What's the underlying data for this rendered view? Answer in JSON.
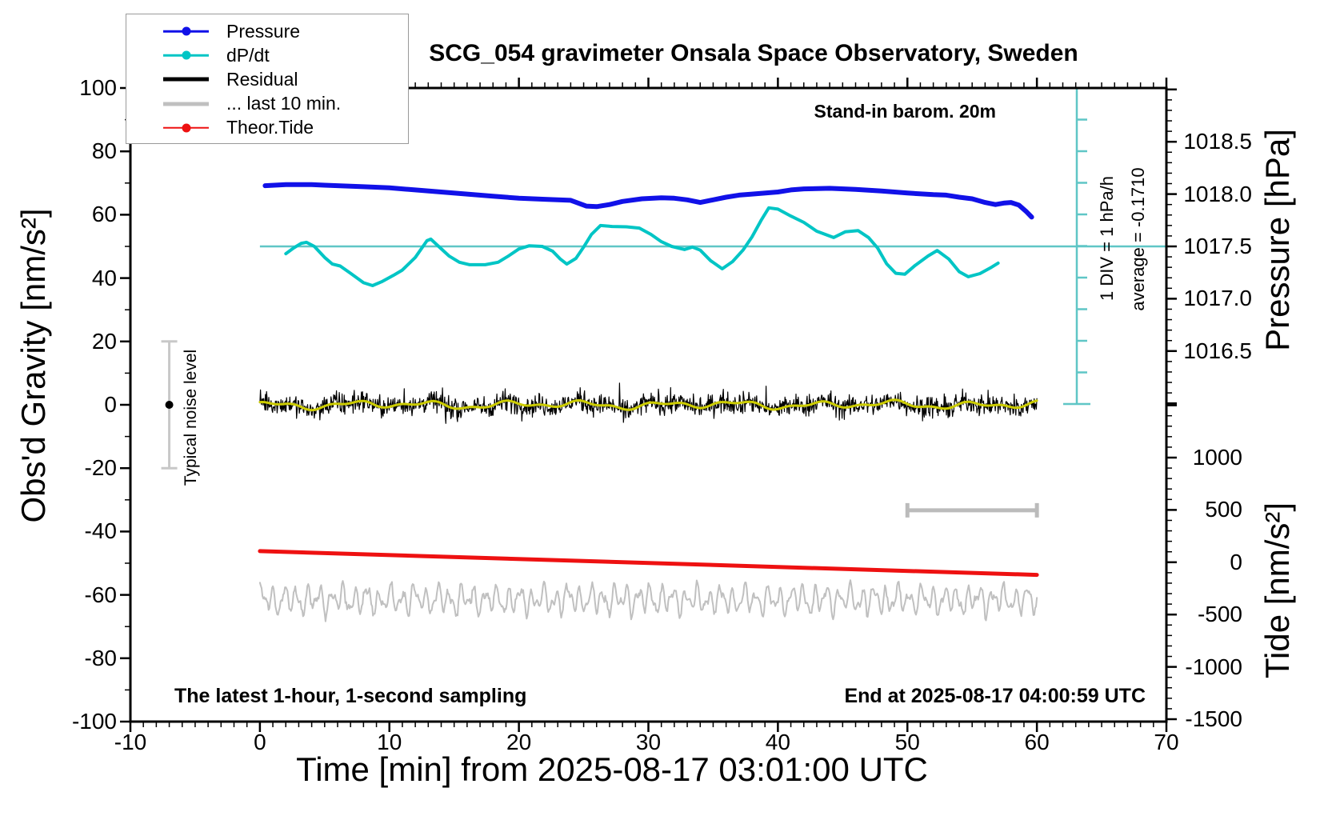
{
  "title": "SCG_054 gravimeter Onsala Space Observatory, Sweden",
  "annotations": {
    "barom": "Stand-in barom. 20m",
    "div_scale": "1 DIV = 1 hPa/h",
    "average": "average = -0.1710",
    "noise_label": "Typical noise level",
    "sampling": "The latest 1-hour, 1-second sampling",
    "end_time": "End at 2025-08-17 04:00:59 UTC"
  },
  "legend": {
    "items": [
      {
        "label": "Pressure",
        "color": "#1111e8",
        "style": "line-dot",
        "thickness": 2.5
      },
      {
        "label": "dP/dt",
        "color": "#00c5c5",
        "style": "line-dot",
        "thickness": 2.5
      },
      {
        "label": "Residual",
        "color": "#000000",
        "style": "line",
        "thickness": 5
      },
      {
        "label": "... last 10 min.",
        "color": "#c0c0c0",
        "style": "line",
        "thickness": 5
      },
      {
        "label": "Theor.Tide",
        "color": "#ee1111",
        "style": "line-dot",
        "thickness": 2.5
      }
    ]
  },
  "axes": {
    "x": {
      "label": "Time [min] from 2025-08-17 03:01:00 UTC",
      "min": -10,
      "max": 70,
      "major_step": 10,
      "minor_step": 1,
      "tick_labels": [
        "-10",
        "0",
        "10",
        "20",
        "30",
        "40",
        "50",
        "60",
        "70"
      ]
    },
    "y_left": {
      "label": "Obs'd Gravity [nm/s²]",
      "min": -100,
      "max": 100,
      "major_step": 20,
      "minor_step": 10,
      "tick_labels": [
        "100",
        "80",
        "60",
        "40",
        "20",
        "0",
        "-20",
        "-40",
        "-60",
        "-80",
        "-100"
      ]
    },
    "y_right_pressure": {
      "label": "Pressure [hPa]",
      "major_step": 0.5,
      "minor_step": 0.1,
      "tick_labels": [
        "1018.5",
        "1018.0",
        "1017.5",
        "1017.0",
        "1016.5"
      ]
    },
    "y_right_tide": {
      "label": "Tide [nm/s²]",
      "major_step": 500,
      "minor_step": 100,
      "tick_labels": [
        "1000",
        "500",
        "0",
        "-500",
        "-1000",
        "-1500"
      ]
    }
  },
  "chart_data": {
    "type": "line",
    "title": "SCG_054 gravimeter Onsala Space Observatory, Sweden",
    "x_unit": "minutes from 2025-08-17 03:01:00 UTC",
    "x_range": [
      -10,
      70
    ],
    "gravity_axis_range": [
      -100,
      100
    ],
    "legend_position": "top-left",
    "grid": false,
    "reference": {
      "dpdt_zero_line_at_gravity": 50,
      "dpdt_div_hPa_per_h": 1,
      "dpdt_average_hPa_per_h": -0.171,
      "typical_noise_bar": {
        "t_min": -7,
        "gravity_from": -20,
        "gravity_to": 20,
        "dot_at": 0
      },
      "last10min_bar": {
        "t_from": 50,
        "t_to": 60,
        "gravity": -33.3
      }
    },
    "series": [
      {
        "name": "Pressure",
        "axis": "pressure_hPa",
        "color": "#1111e8",
        "width": 6,
        "points": [
          [
            0.4,
            1018.08
          ],
          [
            2,
            1018.09
          ],
          [
            4,
            1018.09
          ],
          [
            5,
            1018.085
          ],
          [
            6,
            1018.08
          ],
          [
            8,
            1018.07
          ],
          [
            10,
            1018.06
          ],
          [
            12,
            1018.04
          ],
          [
            14,
            1018.02
          ],
          [
            16,
            1018.0
          ],
          [
            18,
            1017.98
          ],
          [
            20,
            1017.96
          ],
          [
            22,
            1017.95
          ],
          [
            24,
            1017.94
          ],
          [
            25.2,
            1017.885
          ],
          [
            26,
            1017.88
          ],
          [
            27,
            1017.9
          ],
          [
            28,
            1017.93
          ],
          [
            29.5,
            1017.955
          ],
          [
            31,
            1017.965
          ],
          [
            32,
            1017.96
          ],
          [
            33,
            1017.945
          ],
          [
            34,
            1017.92
          ],
          [
            35,
            1017.945
          ],
          [
            36,
            1017.97
          ],
          [
            37,
            1017.99
          ],
          [
            38,
            1018.0
          ],
          [
            40,
            1018.02
          ],
          [
            41,
            1018.04
          ],
          [
            42,
            1018.05
          ],
          [
            44,
            1018.055
          ],
          [
            46,
            1018.045
          ],
          [
            48,
            1018.03
          ],
          [
            50,
            1018.01
          ],
          [
            52,
            1017.995
          ],
          [
            53,
            1017.99
          ],
          [
            54,
            1017.97
          ],
          [
            55,
            1017.955
          ],
          [
            56,
            1017.92
          ],
          [
            56.8,
            1017.9
          ],
          [
            57.5,
            1017.915
          ],
          [
            58,
            1017.92
          ],
          [
            58.6,
            1017.895
          ],
          [
            59.2,
            1017.83
          ],
          [
            59.6,
            1017.78
          ]
        ]
      },
      {
        "name": "dP/dt",
        "axis": "hPa_per_h",
        "color": "#00c5c5",
        "width": 4,
        "points": [
          [
            2,
            -0.23
          ],
          [
            2.6,
            -0.05
          ],
          [
            3.2,
            0.1
          ],
          [
            3.6,
            0.13
          ],
          [
            4.2,
            0
          ],
          [
            5,
            -0.35
          ],
          [
            5.6,
            -0.56
          ],
          [
            6.2,
            -0.62
          ],
          [
            7,
            -0.85
          ],
          [
            8,
            -1.15
          ],
          [
            8.7,
            -1.24
          ],
          [
            9.4,
            -1.12
          ],
          [
            10.3,
            -0.92
          ],
          [
            11,
            -0.75
          ],
          [
            12,
            -0.35
          ],
          [
            12.9,
            0.18
          ],
          [
            13.2,
            0.23
          ],
          [
            13.8,
            0
          ],
          [
            14.6,
            -0.3
          ],
          [
            15.4,
            -0.5
          ],
          [
            16.2,
            -0.58
          ],
          [
            17.4,
            -0.58
          ],
          [
            18.4,
            -0.5
          ],
          [
            19.2,
            -0.3
          ],
          [
            20,
            -0.08
          ],
          [
            20.8,
            0.02
          ],
          [
            21.8,
            0
          ],
          [
            22.6,
            -0.15
          ],
          [
            23.2,
            -0.4
          ],
          [
            23.7,
            -0.56
          ],
          [
            24.4,
            -0.38
          ],
          [
            25,
            -0.02
          ],
          [
            25.6,
            0.38
          ],
          [
            26.3,
            0.66
          ],
          [
            27.2,
            0.63
          ],
          [
            28.3,
            0.62
          ],
          [
            29.3,
            0.58
          ],
          [
            30.2,
            0.38
          ],
          [
            31,
            0.15
          ],
          [
            31.8,
            0
          ],
          [
            32.8,
            -0.1
          ],
          [
            33.4,
            -0.02
          ],
          [
            34,
            -0.12
          ],
          [
            34.8,
            -0.45
          ],
          [
            35.7,
            -0.71
          ],
          [
            36.5,
            -0.48
          ],
          [
            37.3,
            -0.12
          ],
          [
            38,
            0.3
          ],
          [
            38.7,
            0.82
          ],
          [
            39.3,
            1.22
          ],
          [
            40,
            1.18
          ],
          [
            41,
            0.96
          ],
          [
            42,
            0.76
          ],
          [
            43,
            0.48
          ],
          [
            44.3,
            0.28
          ],
          [
            45.2,
            0.46
          ],
          [
            46.2,
            0.5
          ],
          [
            47,
            0.28
          ],
          [
            47.7,
            -0.05
          ],
          [
            48.4,
            -0.55
          ],
          [
            49.1,
            -0.85
          ],
          [
            49.8,
            -0.88
          ],
          [
            50.6,
            -0.6
          ],
          [
            51.6,
            -0.3
          ],
          [
            52.3,
            -0.13
          ],
          [
            53.2,
            -0.4
          ],
          [
            54,
            -0.8
          ],
          [
            54.7,
            -0.96
          ],
          [
            55.6,
            -0.86
          ],
          [
            56.4,
            -0.68
          ],
          [
            57,
            -0.53
          ]
        ]
      },
      {
        "name": "Residual",
        "axis": "gravity_nm_s2",
        "color": "#000000",
        "width": 1.2,
        "t_span": [
          0,
          60
        ],
        "mean": 0,
        "typical_amplitude": 3.5,
        "spike_amplitude": 8,
        "generated_noise": true
      },
      {
        "name": "Residual smoothed",
        "axis": "gravity_nm_s2",
        "color": "#cccc00",
        "width": 3,
        "t_span": [
          0,
          60
        ],
        "mean": 0,
        "amplitude": 1.5,
        "generated_noise": true
      },
      {
        "name": "Residual last 10 min (time-magnified)",
        "axis": "gravity_nm_s2",
        "color": "#c0c0c0",
        "width": 2,
        "t_span": [
          0,
          60
        ],
        "center": -61.5,
        "amplitude": 5.5,
        "generated_noise": true
      },
      {
        "name": "Theor.Tide",
        "axis": "tide_nm_s2",
        "color": "#ee1111",
        "width": 5,
        "points": [
          [
            0,
            106
          ],
          [
            60,
            -121
          ]
        ]
      }
    ]
  }
}
